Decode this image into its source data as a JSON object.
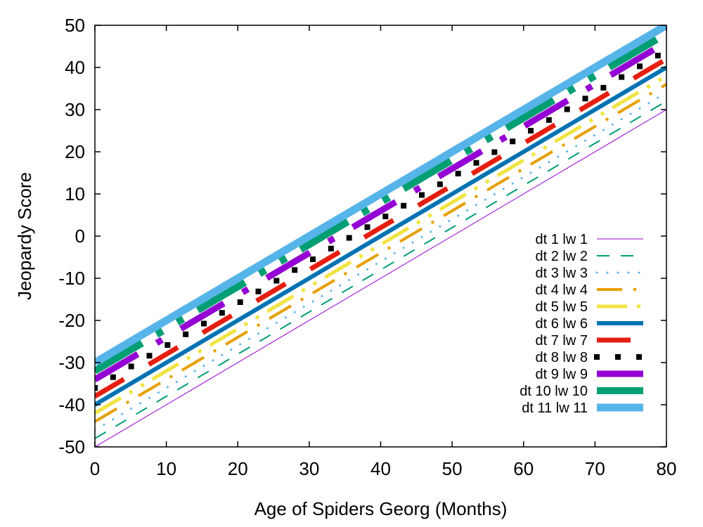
{
  "chart_data": {
    "type": "line",
    "title": "",
    "xlabel": "Age of Spiders Georg (Months)",
    "ylabel": "Jeopardy Score",
    "xlim": [
      0,
      80
    ],
    "ylim": [
      -50,
      50
    ],
    "xticks": [
      0,
      10,
      20,
      30,
      40,
      50,
      60,
      70,
      80
    ],
    "yticks": [
      -50,
      -40,
      -30,
      -20,
      -10,
      0,
      10,
      20,
      30,
      40,
      50
    ],
    "grid": false,
    "legend_position": "bottom-right",
    "series": [
      {
        "name": "dt 1 lw 1",
        "color": "#9400d3",
        "dash": "solid",
        "width": 1,
        "x": [
          0,
          80
        ],
        "y": [
          -50,
          30
        ]
      },
      {
        "name": "dt 2 lw 2",
        "color": "#009e73",
        "dash": "dash",
        "width": 2,
        "x": [
          0,
          80
        ],
        "y": [
          -48,
          32
        ]
      },
      {
        "name": "dt 3 lw 3",
        "color": "#56b4e9",
        "dash": "dot",
        "width": 3,
        "x": [
          0,
          80
        ],
        "y": [
          -46,
          34
        ]
      },
      {
        "name": "dt 4 lw 4",
        "color": "#e69f00",
        "dash": "dash-dot",
        "width": 4,
        "x": [
          0,
          80
        ],
        "y": [
          -44,
          36
        ]
      },
      {
        "name": "dt 5 lw 5",
        "color": "#f0e442",
        "dash": "dash-dot-dot",
        "width": 5,
        "x": [
          0,
          80
        ],
        "y": [
          -42,
          38
        ]
      },
      {
        "name": "dt 6 lw 6",
        "color": "#0072b2",
        "dash": "solid",
        "width": 6,
        "x": [
          0,
          80
        ],
        "y": [
          -40,
          40
        ]
      },
      {
        "name": "dt 7 lw 7",
        "color": "#e51e10",
        "dash": "dash",
        "width": 7,
        "x": [
          0,
          80
        ],
        "y": [
          -38,
          42
        ]
      },
      {
        "name": "dt 8 lw 8",
        "color": "#000000",
        "dash": "dot",
        "width": 8,
        "x": [
          0,
          80
        ],
        "y": [
          -36,
          44
        ]
      },
      {
        "name": "dt 9 lw 9",
        "color": "#9400d3",
        "dash": "dash-dot",
        "width": 9,
        "x": [
          0,
          80
        ],
        "y": [
          -34,
          46
        ]
      },
      {
        "name": "dt 10 lw 10",
        "color": "#009e73",
        "dash": "dash-dot-dot",
        "width": 10,
        "x": [
          0,
          80
        ],
        "y": [
          -32,
          48
        ]
      },
      {
        "name": "dt 11 lw 11",
        "color": "#56b4e9",
        "dash": "solid",
        "width": 11,
        "x": [
          0,
          80
        ],
        "y": [
          -30,
          50
        ]
      }
    ]
  }
}
